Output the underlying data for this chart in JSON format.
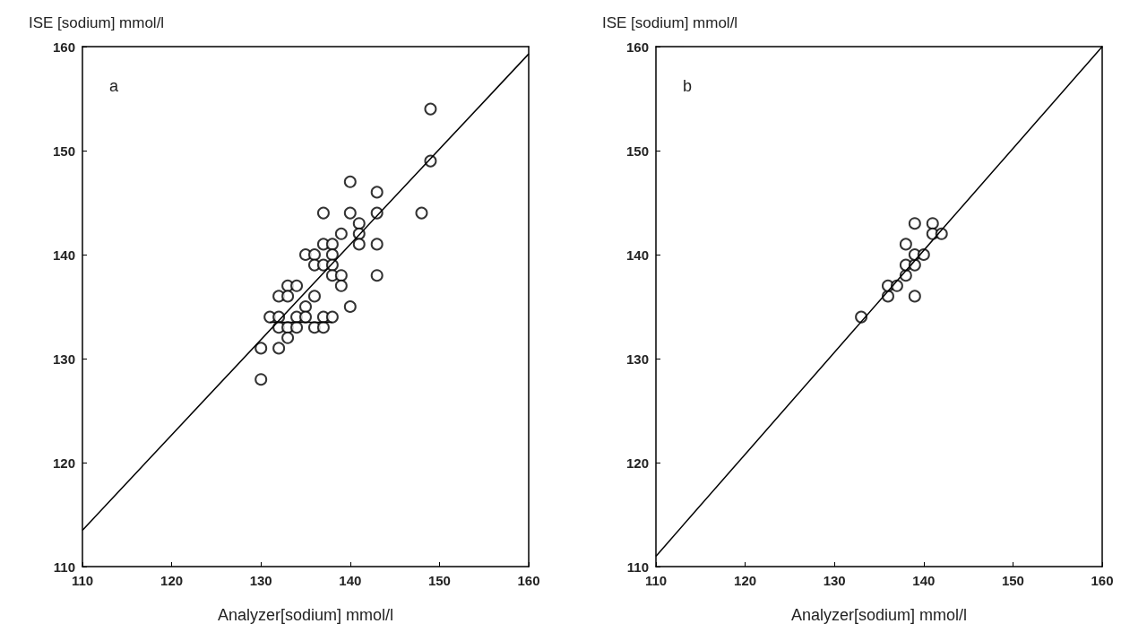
{
  "chart_data": [
    {
      "type": "scatter",
      "ylabel": "ISE [sodium] mmol/l",
      "xlabel": "Analyzer[sodium] mmol/l",
      "annotations": [
        "a"
      ],
      "grid": false,
      "xlim": [
        110,
        160
      ],
      "xticks": [
        110,
        120,
        130,
        140,
        150,
        160
      ],
      "ylim": [
        110,
        160
      ],
      "yticks": [
        110,
        120,
        130,
        140,
        150,
        160
      ],
      "series": [
        {
          "color": "#000000",
          "marker": "circle",
          "x": [
            149,
            149,
            148,
            140,
            143,
            137,
            140,
            143,
            141,
            139,
            141,
            137,
            138,
            141,
            143,
            135,
            136,
            138,
            136,
            137,
            138,
            138,
            139,
            143,
            139,
            133,
            134,
            132,
            133,
            136,
            135,
            140,
            131,
            132,
            134,
            135,
            137,
            138,
            132,
            133,
            134,
            136,
            137,
            133,
            130,
            132,
            130
          ],
          "values": [
            154,
            149,
            144,
            147,
            146,
            144,
            144,
            144,
            143,
            142,
            142,
            141,
            141,
            141,
            141,
            140,
            140,
            140,
            139,
            139,
            139,
            138,
            138,
            138,
            137,
            137,
            137,
            136,
            136,
            136,
            135,
            135,
            134,
            134,
            134,
            134,
            134,
            134,
            133,
            133,
            133,
            133,
            133,
            132,
            131,
            131,
            128
          ]
        },
        {
          "type": "line",
          "marker": "none",
          "color": "#000000",
          "x": [
            110,
            160
          ],
          "values": [
            113.5,
            159.3
          ]
        },
        {
          "type": "line",
          "marker": "none",
          "color": "#000000",
          "x": [
            131,
            138
          ],
          "values": [
            133.5,
            133.5
          ]
        }
      ]
    },
    {
      "type": "scatter",
      "ylabel": "ISE [sodium] mmol/l",
      "xlabel": "Analyzer[sodium] mmol/l",
      "annotations": [
        "b"
      ],
      "grid": false,
      "xlim": [
        110,
        160
      ],
      "xticks": [
        110,
        120,
        130,
        140,
        150,
        160
      ],
      "ylim": [
        110,
        160
      ],
      "yticks": [
        110,
        120,
        130,
        140,
        150,
        160
      ],
      "series": [
        {
          "color": "#000000",
          "marker": "circle",
          "x": [
            133,
            136,
            136,
            137,
            138,
            139,
            138,
            139,
            139,
            140,
            138,
            139,
            141,
            141,
            142
          ],
          "values": [
            134,
            136,
            137,
            137,
            138,
            136,
            139,
            139,
            140,
            140,
            141,
            143,
            143,
            142,
            142
          ]
        },
        {
          "type": "line",
          "marker": "none",
          "color": "#000000",
          "x": [
            110,
            160
          ],
          "values": [
            111,
            160
          ]
        }
      ]
    }
  ]
}
